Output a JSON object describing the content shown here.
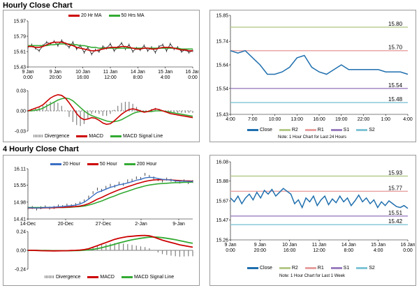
{
  "titles": {
    "hourly": "Hourly Close Chart",
    "four_hourly": "4 Hourly Close Chart"
  },
  "colors": {
    "close": "#1f6fae",
    "ma20": "#cc0000",
    "ma50": "#33aa33",
    "ma200": "#33aa33",
    "hour20": "#3a6fc4",
    "hour50": "#cc0000",
    "macd": "#cc0000",
    "signal": "#33aa33",
    "divergence": "#808080",
    "r2": "#b5c98a",
    "r1": "#e8a0a0",
    "s1": "#9b7fc0",
    "s2": "#7fc4d6"
  },
  "notes": {
    "hourly": "Note: 1 Hour Chart for Last 24 Hours",
    "weekly": "Note: 1 Hour Chart for Last 1 Week"
  },
  "chart_data": [
    {
      "id": "hourly_ma",
      "type": "line",
      "legend": [
        "20 Hr MA",
        "50 Hrs MA"
      ],
      "yticks": [
        "15.97",
        "15.79",
        "15.61",
        "15.43"
      ],
      "xticks": [
        "9 Jan\n0:00",
        "9 Jan\n20:00",
        "10 Jan\n16:00",
        "11 Jan\n12:00",
        "14 Jan\n8:00",
        "15 Jan\n4:00",
        "16 Jan\n0:00"
      ],
      "ylim": [
        15.43,
        15.97
      ],
      "series": [
        {
          "name": "Close",
          "values": [
            15.66,
            15.69,
            15.65,
            15.62,
            15.68,
            15.72,
            15.7,
            15.73,
            15.68,
            15.74,
            15.7,
            15.66,
            15.72,
            15.64,
            15.68,
            15.6,
            15.66,
            15.58,
            15.63,
            15.61,
            15.67,
            15.65,
            15.7,
            15.62,
            15.66,
            15.71,
            15.64,
            15.69,
            15.61,
            15.65,
            15.63,
            15.68,
            15.62,
            15.66,
            15.6,
            15.67,
            15.69,
            15.62,
            15.7,
            15.64,
            15.66,
            15.61,
            15.63,
            15.6,
            15.62
          ]
        },
        {
          "name": "20 Hr MA",
          "values": [
            15.67,
            15.67,
            15.66,
            15.66,
            15.67,
            15.69,
            15.71,
            15.72,
            15.72,
            15.72,
            15.71,
            15.69,
            15.68,
            15.66,
            15.65,
            15.64,
            15.63,
            15.62,
            15.62,
            15.63,
            15.64,
            15.65,
            15.66,
            15.66,
            15.66,
            15.67,
            15.67,
            15.66,
            15.65,
            15.64,
            15.64,
            15.65,
            15.65,
            15.64,
            15.64,
            15.65,
            15.66,
            15.66,
            15.66,
            15.65,
            15.64,
            15.63,
            15.63,
            15.62,
            15.62
          ]
        },
        {
          "name": "50 Hrs MA",
          "values": [
            15.68,
            15.68,
            15.68,
            15.68,
            15.68,
            15.68,
            15.69,
            15.69,
            15.7,
            15.7,
            15.7,
            15.7,
            15.69,
            15.69,
            15.68,
            15.68,
            15.67,
            15.66,
            15.66,
            15.65,
            15.65,
            15.65,
            15.65,
            15.65,
            15.65,
            15.65,
            15.65,
            15.65,
            15.65,
            15.65,
            15.65,
            15.65,
            15.65,
            15.65,
            15.65,
            15.65,
            15.65,
            15.65,
            15.65,
            15.65,
            15.65,
            15.64,
            15.64,
            15.64,
            15.64
          ]
        }
      ]
    },
    {
      "id": "hourly_macd",
      "type": "line",
      "legend": [
        "Divergence",
        "MACD",
        "MACD Signal Line"
      ],
      "yticks": [
        "0.03",
        "0.00",
        "-0.03"
      ],
      "ylim": [
        -0.03,
        0.03
      ],
      "series": [
        {
          "name": "MACD",
          "values": [
            0.0,
            0.002,
            0.004,
            0.006,
            0.009,
            0.014,
            0.019,
            0.022,
            0.024,
            0.023,
            0.019,
            0.012,
            0.004,
            -0.004,
            -0.01,
            -0.013,
            -0.012,
            -0.01,
            -0.011,
            -0.014,
            -0.018,
            -0.02,
            -0.019,
            -0.015,
            -0.01,
            -0.005,
            -0.001,
            0.002,
            0.003,
            0.002,
            0.0,
            -0.002,
            -0.001,
            0.001,
            0.003,
            0.002,
            0.0,
            -0.002,
            -0.004,
            -0.005,
            -0.006,
            -0.007,
            -0.008,
            -0.009,
            -0.01
          ]
        },
        {
          "name": "MACD Signal Line",
          "values": [
            0.0,
            0.0,
            0.001,
            0.002,
            0.004,
            0.007,
            0.01,
            0.013,
            0.016,
            0.018,
            0.019,
            0.018,
            0.015,
            0.01,
            0.005,
            0.0,
            -0.004,
            -0.007,
            -0.009,
            -0.011,
            -0.013,
            -0.015,
            -0.016,
            -0.016,
            -0.015,
            -0.013,
            -0.01,
            -0.007,
            -0.004,
            -0.002,
            -0.001,
            -0.001,
            -0.001,
            -0.001,
            0.0,
            0.0,
            0.0,
            -0.001,
            -0.002,
            -0.003,
            -0.004,
            -0.005,
            -0.006,
            -0.007,
            -0.008
          ]
        }
      ]
    },
    {
      "id": "hourly_levels",
      "type": "line",
      "yticks": [
        "15.85",
        "15.74",
        "15.64",
        "15.54",
        "15.43"
      ],
      "xticks": [
        "4:00",
        "7:00",
        "10:00",
        "13:00",
        "16:00",
        "19:00",
        "22:00",
        "1:00",
        "4:00"
      ],
      "ylim": [
        15.43,
        15.85
      ],
      "legend": [
        "Close",
        "R2",
        "R1",
        "S1",
        "S2"
      ],
      "levels": {
        "R2": 15.8,
        "R1": 15.7,
        "S1": 15.54,
        "S2": 15.48
      },
      "level_labels": {
        "R2": "15.80",
        "R1": "15.70",
        "S1": "15.54",
        "S2": "15.48"
      },
      "series": [
        {
          "name": "Close",
          "values": [
            15.7,
            15.69,
            15.7,
            15.67,
            15.64,
            15.6,
            15.6,
            15.61,
            15.63,
            15.67,
            15.68,
            15.63,
            15.61,
            15.6,
            15.62,
            15.64,
            15.62,
            15.62,
            15.62,
            15.62,
            15.62,
            15.61,
            15.61,
            15.61,
            15.6
          ]
        }
      ]
    },
    {
      "id": "four_hourly_ma",
      "type": "line",
      "legend": [
        "20 Hour",
        "50 Hour",
        "200 Hour"
      ],
      "yticks": [
        "16.11",
        "15.55",
        "14.98",
        "14.41"
      ],
      "xticks": [
        "14-Dec",
        "20-Dec",
        "27-Dec",
        "2-Jan",
        "9-Jan"
      ],
      "ylim": [
        14.41,
        16.11
      ],
      "series": [
        {
          "name": "Close",
          "values": [
            14.78,
            14.8,
            14.75,
            14.79,
            14.82,
            14.78,
            14.8,
            14.85,
            14.83,
            14.88,
            14.86,
            14.9,
            14.95,
            15.02,
            15.15,
            15.3,
            15.42,
            15.38,
            15.48,
            15.55,
            15.52,
            15.62,
            15.58,
            15.7,
            15.72,
            15.8,
            15.78,
            15.92,
            15.85,
            15.8,
            15.74,
            15.7,
            15.76,
            15.72,
            15.68,
            15.66,
            15.7,
            15.64,
            15.68
          ]
        },
        {
          "name": "20 Hour",
          "values": [
            14.79,
            14.79,
            14.78,
            14.79,
            14.8,
            14.8,
            14.81,
            14.82,
            14.83,
            14.85,
            14.86,
            14.88,
            14.92,
            14.98,
            15.08,
            15.2,
            15.31,
            15.36,
            15.42,
            15.48,
            15.52,
            15.57,
            15.59,
            15.63,
            15.67,
            15.72,
            15.75,
            15.8,
            15.82,
            15.81,
            15.78,
            15.75,
            15.74,
            15.73,
            15.7,
            15.69,
            15.69,
            15.68,
            15.68
          ]
        },
        {
          "name": "50 Hour",
          "values": [
            14.78,
            14.78,
            14.78,
            14.78,
            14.79,
            14.79,
            14.79,
            14.8,
            14.8,
            14.81,
            14.82,
            14.83,
            14.85,
            14.88,
            14.93,
            15.0,
            15.08,
            15.14,
            15.21,
            15.28,
            15.34,
            15.4,
            15.45,
            15.5,
            15.55,
            15.6,
            15.64,
            15.68,
            15.71,
            15.73,
            15.74,
            15.74,
            15.74,
            15.73,
            15.72,
            15.71,
            15.7,
            15.7,
            15.69
          ]
        },
        {
          "name": "200 Hour",
          "values": [
            14.8,
            14.8,
            14.8,
            14.8,
            14.8,
            14.8,
            14.8,
            14.8,
            14.8,
            14.8,
            14.81,
            14.82,
            14.83,
            14.85,
            14.88,
            14.92,
            14.97,
            15.02,
            15.08,
            15.14,
            15.19,
            15.25,
            15.3,
            15.35,
            15.4,
            15.45,
            15.49,
            15.53,
            15.56,
            15.58,
            15.6,
            15.61,
            15.62,
            15.63,
            15.64,
            15.64,
            15.65,
            15.65,
            15.66
          ]
        }
      ]
    },
    {
      "id": "four_hourly_macd",
      "type": "line",
      "legend": [
        "Divergence",
        "MACD",
        "MACD Signal Line"
      ],
      "yticks": [
        "0.24",
        "0.00",
        "-0.24"
      ],
      "ylim": [
        -0.24,
        0.24
      ],
      "series": [
        {
          "name": "MACD",
          "values": [
            0.0,
            0.0,
            -0.002,
            -0.004,
            -0.005,
            -0.006,
            -0.007,
            -0.006,
            -0.005,
            -0.004,
            -0.002,
            0.0,
            0.004,
            0.01,
            0.02,
            0.04,
            0.06,
            0.08,
            0.1,
            0.12,
            0.14,
            0.155,
            0.165,
            0.175,
            0.18,
            0.185,
            0.188,
            0.19,
            0.185,
            0.17,
            0.15,
            0.13,
            0.115,
            0.1,
            0.085,
            0.07,
            0.06,
            0.05,
            0.04
          ]
        },
        {
          "name": "MACD Signal Line",
          "values": [
            0.0,
            0.0,
            0.0,
            -0.001,
            -0.002,
            -0.003,
            -0.004,
            -0.004,
            -0.005,
            -0.005,
            -0.004,
            -0.003,
            -0.002,
            0.001,
            0.005,
            0.012,
            0.022,
            0.034,
            0.048,
            0.062,
            0.078,
            0.094,
            0.108,
            0.122,
            0.134,
            0.145,
            0.154,
            0.162,
            0.168,
            0.17,
            0.168,
            0.162,
            0.154,
            0.145,
            0.135,
            0.124,
            0.112,
            0.1,
            0.09
          ]
        }
      ]
    },
    {
      "id": "weekly_levels",
      "type": "line",
      "yticks": [
        "16.08",
        "15.88",
        "15.67",
        "15.47",
        "15.26"
      ],
      "xticks": [
        "9 Jan\n0:00",
        "9 Jan\n20:00",
        "10 Jan\n16:00",
        "11 Jan\n12:00",
        "14 Jan\n8:00",
        "15 Jan\n4:00",
        "16 Jan\n0:00"
      ],
      "ylim": [
        15.26,
        16.08
      ],
      "legend": [
        "Close",
        "R2",
        "R1",
        "S1",
        "S2"
      ],
      "levels": {
        "R2": 15.93,
        "R1": 15.77,
        "S1": 15.51,
        "S2": 15.42
      },
      "level_labels": {
        "R2": "15.93",
        "R1": "15.77",
        "S1": "15.51",
        "S2": "15.42"
      },
      "series": [
        {
          "name": "Close",
          "values": [
            15.7,
            15.66,
            15.72,
            15.64,
            15.7,
            15.74,
            15.68,
            15.76,
            15.7,
            15.78,
            15.74,
            15.79,
            15.72,
            15.76,
            15.8,
            15.77,
            15.74,
            15.64,
            15.68,
            15.6,
            15.7,
            15.66,
            15.72,
            15.62,
            15.68,
            15.72,
            15.63,
            15.69,
            15.65,
            15.72,
            15.66,
            15.7,
            15.62,
            15.67,
            15.73,
            15.66,
            15.7,
            15.64,
            15.68,
            15.6,
            15.66,
            15.62,
            15.67,
            15.64,
            15.61,
            15.6,
            15.62,
            15.59
          ]
        }
      ]
    }
  ]
}
